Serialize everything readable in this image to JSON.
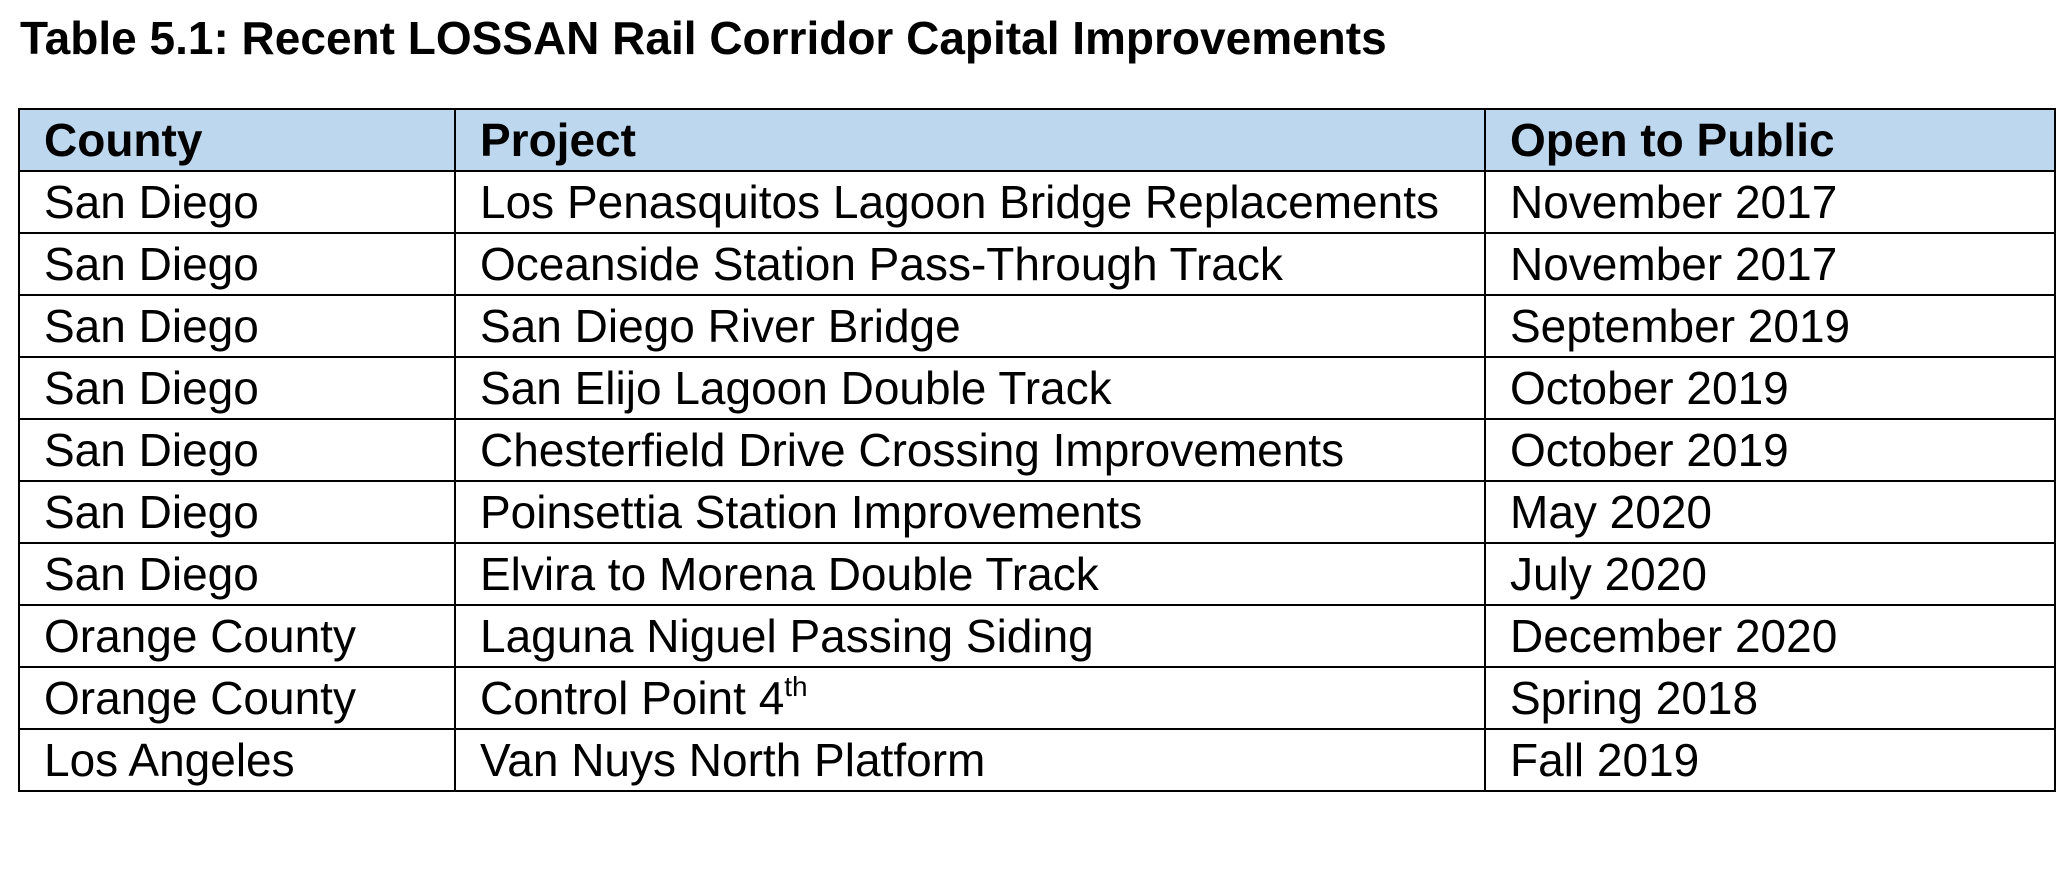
{
  "title": "Table 5.1: Recent LOSSAN Rail Corridor Capital Improvements",
  "table": {
    "headers": {
      "county": "County",
      "project": "Project",
      "open": "Open to Public"
    },
    "rows": [
      {
        "county": "San Diego",
        "project": "Los Penasquitos Lagoon Bridge Replacements",
        "open": "November 2017"
      },
      {
        "county": "San Diego",
        "project": "Oceanside Station Pass-Through Track",
        "open": "November 2017"
      },
      {
        "county": "San Diego",
        "project": "San Diego River Bridge",
        "open": "September 2019"
      },
      {
        "county": "San Diego",
        "project": "San Elijo Lagoon Double Track",
        "open": "October 2019"
      },
      {
        "county": "San Diego",
        "project": "Chesterfield Drive Crossing Improvements",
        "open": "October 2019"
      },
      {
        "county": "San Diego",
        "project": "Poinsettia Station Improvements",
        "open": "May 2020"
      },
      {
        "county": "San Diego",
        "project": "Elvira to Morena Double Track",
        "open": "July 2020"
      },
      {
        "county": "Orange County",
        "project": "Laguna Niguel Passing Siding",
        "open": "December 2020"
      },
      {
        "county": "Orange County",
        "project": "Control Point 4",
        "project_sup": "th",
        "open": "Spring 2018"
      },
      {
        "county": "Los Angeles",
        "project": "Van Nuys North Platform",
        "open": "Fall 2019"
      }
    ]
  },
  "colors": {
    "header_background": "#bdd7ee",
    "border": "#000000",
    "text": "#000000"
  }
}
